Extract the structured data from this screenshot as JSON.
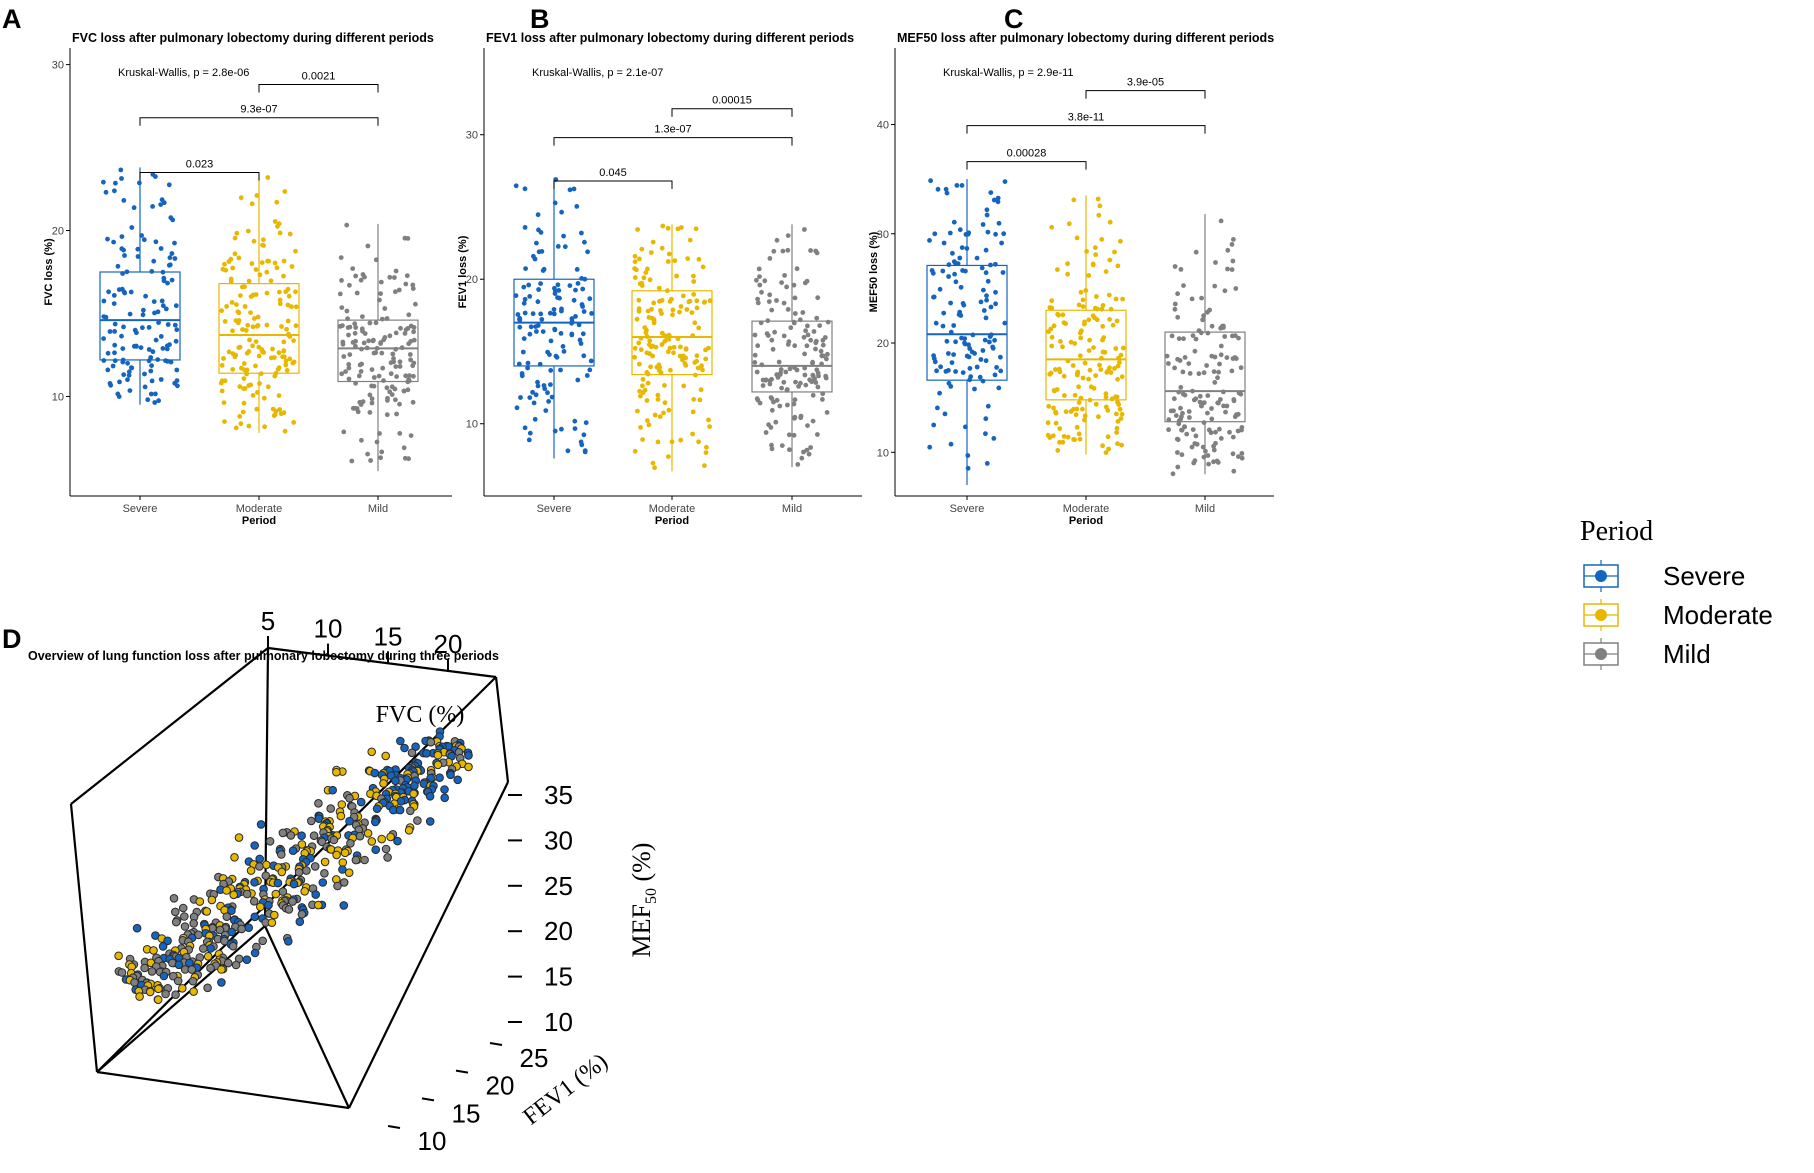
{
  "legend": {
    "title": "Period",
    "entries": [
      {
        "label": "Severe",
        "color": "#1565C0"
      },
      {
        "label": "Moderate",
        "color": "#E8B800"
      },
      {
        "label": "Mild",
        "color": "#808080"
      }
    ]
  },
  "colors": {
    "severe": "#1565C0",
    "moderate": "#E8B800",
    "mild": "#808080"
  },
  "chart_data": [
    {
      "panel": "A",
      "type": "box",
      "title": "FVC loss after pulmonary lobectomy during different periods",
      "ylabel": "FVC loss (%)",
      "xlabel": "Period",
      "categories": [
        "Severe",
        "Moderate",
        "Mild"
      ],
      "ylim": [
        4,
        31
      ],
      "yticks": [
        10,
        20,
        30
      ],
      "test": "Kruskal-Wallis, p = 2.8e-06",
      "boxes": [
        {
          "min": 9.5,
          "q1": 12.2,
          "median": 14.6,
          "q3": 17.5,
          "max": 23.8,
          "n": 140
        },
        {
          "min": 7.8,
          "q1": 11.4,
          "median": 13.7,
          "q3": 16.8,
          "max": 23.2,
          "n": 170
        },
        {
          "min": 5.5,
          "q1": 10.9,
          "median": 12.9,
          "q3": 14.6,
          "max": 20.4,
          "n": 160
        }
      ],
      "comparisons": [
        {
          "from": 0,
          "to": 1,
          "label": "0.023",
          "y": 23.5
        },
        {
          "from": 0,
          "to": 2,
          "label": "9.3e-07",
          "y": 26.8
        },
        {
          "from": 1,
          "to": 2,
          "label": "0.0021",
          "y": 28.8
        }
      ]
    },
    {
      "panel": "B",
      "type": "box",
      "title": "FEV1 loss after pulmonary lobectomy during different periods",
      "ylabel": "FEV1 loss (%)",
      "xlabel": "Period",
      "categories": [
        "Severe",
        "Moderate",
        "Mild"
      ],
      "ylim": [
        5,
        36
      ],
      "yticks": [
        10,
        20,
        30
      ],
      "test": "Kruskal-Wallis, p = 2.1e-07",
      "boxes": [
        {
          "min": 7.6,
          "q1": 14.0,
          "median": 17.0,
          "q3": 20.0,
          "max": 27.0,
          "n": 140
        },
        {
          "min": 6.7,
          "q1": 13.4,
          "median": 16.0,
          "q3": 19.2,
          "max": 23.8,
          "n": 170
        },
        {
          "min": 7.0,
          "q1": 12.2,
          "median": 14.0,
          "q3": 17.1,
          "max": 23.8,
          "n": 160
        }
      ],
      "comparisons": [
        {
          "from": 0,
          "to": 1,
          "label": "0.045",
          "y": 26.8
        },
        {
          "from": 0,
          "to": 2,
          "label": "1.3e-07",
          "y": 29.8
        },
        {
          "from": 1,
          "to": 2,
          "label": "0.00015",
          "y": 31.8
        }
      ]
    },
    {
      "panel": "C",
      "type": "box",
      "title": "MEF50 loss after pulmonary lobectomy during different periods",
      "ylabel": "MEF50 loss (%)",
      "xlabel": "Period",
      "categories": [
        "Severe",
        "Moderate",
        "Mild"
      ],
      "ylim": [
        6,
        47
      ],
      "yticks": [
        10,
        20,
        30,
        40
      ],
      "test": "Kruskal-Wallis, p = 2.9e-11",
      "boxes": [
        {
          "min": 7.0,
          "q1": 16.6,
          "median": 20.8,
          "q3": 27.1,
          "max": 35.0,
          "n": 140
        },
        {
          "min": 9.8,
          "q1": 14.8,
          "median": 18.5,
          "q3": 23.0,
          "max": 33.5,
          "n": 170
        },
        {
          "min": 8.0,
          "q1": 12.8,
          "median": 15.6,
          "q3": 21.0,
          "max": 31.8,
          "n": 160
        }
      ],
      "comparisons": [
        {
          "from": 0,
          "to": 1,
          "label": "0.00028",
          "y": 36.6
        },
        {
          "from": 0,
          "to": 2,
          "label": "3.8e-11",
          "y": 39.9
        },
        {
          "from": 1,
          "to": 2,
          "label": "3.9e-05",
          "y": 43.1
        }
      ]
    },
    {
      "panel": "D",
      "type": "scatter3d",
      "title": "Overview of lung function loss after pulmonary lobectomy during three periods",
      "axes": {
        "x": {
          "label": "FVC (%)",
          "ticks": [
            5,
            10,
            15,
            20
          ],
          "range": [
            5,
            24
          ]
        },
        "y": {
          "label": "FEV1 (%)",
          "ticks": [
            10,
            15,
            20,
            25
          ],
          "range": [
            7,
            27
          ]
        },
        "z": {
          "label_main": "MEF",
          "label_sub": "50",
          "label_tail": " (%)",
          "ticks": [
            10,
            15,
            20,
            25,
            30,
            35
          ],
          "range": [
            7,
            36
          ]
        }
      },
      "groups": [
        "Severe",
        "Moderate",
        "Mild"
      ]
    }
  ]
}
